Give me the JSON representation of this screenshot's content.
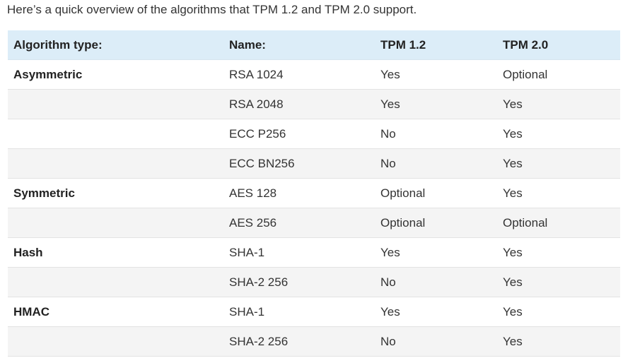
{
  "intro": "Here’s a quick overview of the algorithms that TPM 1.2 and TPM 2.0 support.",
  "table": {
    "headers": [
      "Algorithm type:",
      "Name:",
      "TPM 1.2",
      "TPM 2.0"
    ],
    "rows": [
      {
        "type": "Asymmetric",
        "name": "RSA 1024",
        "tpm12": "Yes",
        "tpm20": "Optional"
      },
      {
        "type": "",
        "name": "RSA 2048",
        "tpm12": "Yes",
        "tpm20": "Yes"
      },
      {
        "type": "",
        "name": "ECC P256",
        "tpm12": "No",
        "tpm20": "Yes"
      },
      {
        "type": "",
        "name": "ECC BN256",
        "tpm12": "No",
        "tpm20": "Yes"
      },
      {
        "type": "Symmetric",
        "name": "AES 128",
        "tpm12": "Optional",
        "tpm20": "Yes"
      },
      {
        "type": "",
        "name": "AES 256",
        "tpm12": "Optional",
        "tpm20": "Optional"
      },
      {
        "type": "Hash",
        "name": "SHA-1",
        "tpm12": "Yes",
        "tpm20": "Yes"
      },
      {
        "type": "",
        "name": "SHA-2 256",
        "tpm12": "No",
        "tpm20": "Yes"
      },
      {
        "type": "HMAC",
        "name": "SHA-1",
        "tpm12": "Yes",
        "tpm20": "Yes"
      },
      {
        "type": "",
        "name": "SHA-2 256",
        "tpm12": "No",
        "tpm20": "Yes"
      }
    ]
  },
  "colors": {
    "header_bg": "#dcedf8",
    "alt_row_bg": "#f4f4f4",
    "border": "#e3e3e3"
  }
}
